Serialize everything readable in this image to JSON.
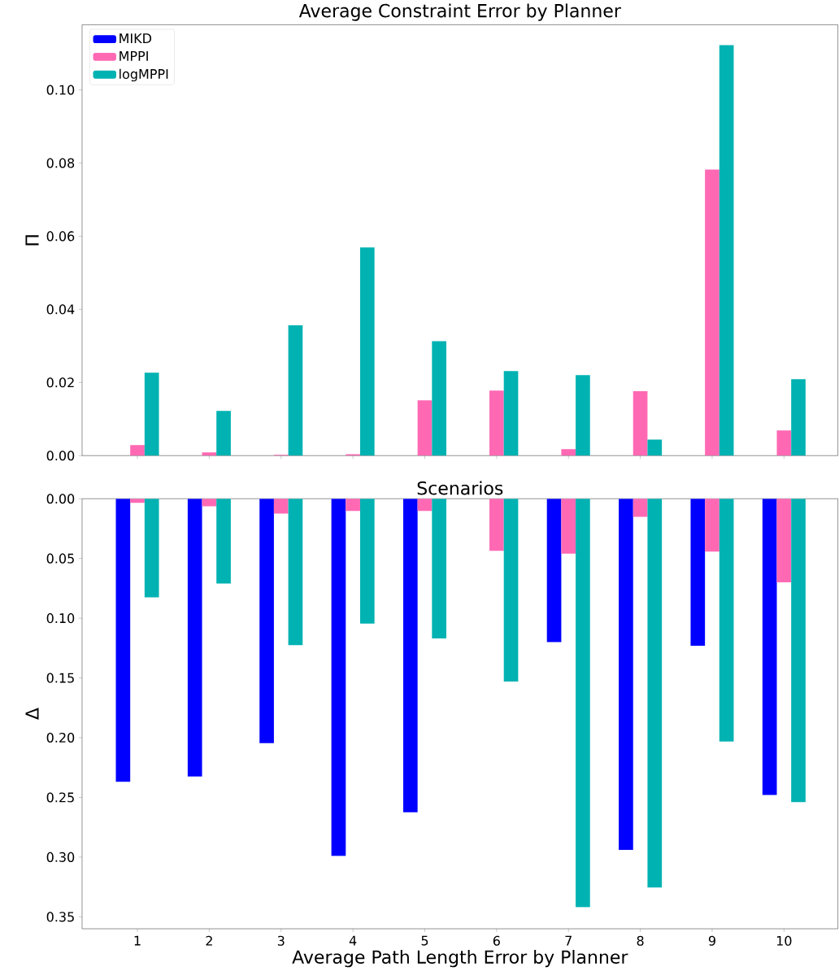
{
  "chart_data": [
    {
      "type": "bar",
      "title": "Average Constraint Error by Planner",
      "ylabel": "Π",
      "categories": [
        "1",
        "2",
        "3",
        "4",
        "5",
        "6",
        "7",
        "8",
        "9",
        "10"
      ],
      "series": [
        {
          "name": "MIKD",
          "color": "#0000ff",
          "values": [
            0,
            0,
            0,
            0,
            0,
            0,
            0,
            0,
            0,
            0
          ]
        },
        {
          "name": "MPPI",
          "color": "#ff69b4",
          "values": [
            0.0029,
            0.0009,
            0.0002,
            0.0004,
            0.0151,
            0.0178,
            0.0018,
            0.0176,
            0.0782,
            0.0069
          ]
        },
        {
          "name": "logMPPI",
          "color": "#00b2b2",
          "values": [
            0.0227,
            0.0122,
            0.0356,
            0.0569,
            0.0313,
            0.0231,
            0.022,
            0.0044,
            0.1122,
            0.0209
          ]
        }
      ],
      "ylim": [
        0,
        0.1178
      ],
      "yticks": [
        {
          "value": 0,
          "label": "0.00"
        },
        {
          "value": 0.02,
          "label": "0.02"
        },
        {
          "value": 0.04,
          "label": "0.04"
        },
        {
          "value": 0.06,
          "label": "0.06"
        },
        {
          "value": 0.08,
          "label": "0.08"
        },
        {
          "value": 0.1,
          "label": "0.10"
        }
      ],
      "legend": "top left",
      "tick_labels": "y",
      "grid": false
    },
    {
      "type": "bar",
      "title": "Scenarios",
      "xlabel": "Average Path Length Error by Planner",
      "ylabel": "Δ",
      "categories": [
        "1",
        "2",
        "3",
        "4",
        "5",
        "6",
        "7",
        "8",
        "9",
        "10"
      ],
      "series": [
        {
          "color": "#0000ff",
          "values": [
            0.237,
            0.2325,
            0.2046,
            0.299,
            0.2624,
            0,
            0.12,
            0.294,
            0.123,
            0.248
          ]
        },
        {
          "color": "#ff69b4",
          "values": [
            0.0035,
            0.0063,
            0.0124,
            0.0103,
            0.0103,
            0.0436,
            0.046,
            0.0151,
            0.0442,
            0.07
          ]
        },
        {
          "color": "#00b2b2",
          "values": [
            0.0825,
            0.071,
            0.1225,
            0.1046,
            0.117,
            0.153,
            0.342,
            0.3255,
            0.2033,
            0.254
          ]
        }
      ],
      "ylim": [
        0.36,
        0
      ],
      "yticks": [
        {
          "value": 0,
          "label": "0.00"
        },
        {
          "value": 0.05,
          "label": "0.05"
        },
        {
          "value": 0.1,
          "label": "0.10"
        },
        {
          "value": 0.15,
          "label": "0.15"
        },
        {
          "value": 0.2,
          "label": "0.20"
        },
        {
          "value": 0.25,
          "label": "0.25"
        },
        {
          "value": 0.3,
          "label": "0.30"
        },
        {
          "value": 0.35,
          "label": "0.35"
        }
      ],
      "grid": false
    }
  ]
}
